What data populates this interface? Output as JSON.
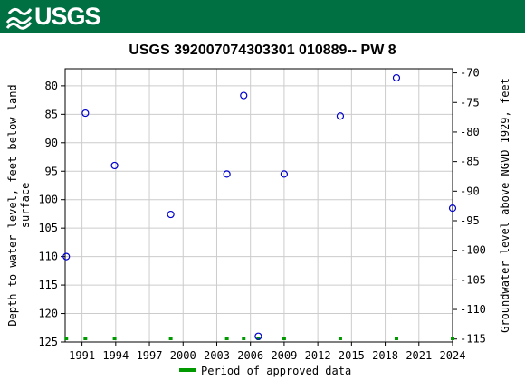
{
  "header": {
    "logo_text": "USGS",
    "logo_icon": "usgs-wave-icon",
    "background": "#006f41"
  },
  "chart_data": {
    "type": "scatter",
    "title": "USGS 392007074303301 010889-- PW 8",
    "ylabel_left_line1": "Depth to water level, feet below land",
    "ylabel_left_line2": "surface",
    "ylabel_right": "Groundwater level above NGVD 1929, feet",
    "x_ticks": [
      "1991",
      "1994",
      "1997",
      "2000",
      "2003",
      "2006",
      "2009",
      "2012",
      "2015",
      "2018",
      "2021",
      "2024"
    ],
    "xlim": [
      1989.5,
      2024.0
    ],
    "ylim_left": [
      125,
      77
    ],
    "y_ticks_left": [
      "80",
      "85",
      "90",
      "95",
      "100",
      "105",
      "110",
      "115",
      "120",
      "125"
    ],
    "y_ticks_right": [
      "-70",
      "-75",
      "-80",
      "-85",
      "-90",
      "-95",
      "-100",
      "-105",
      "-110",
      "-115"
    ],
    "series": [
      {
        "marker_color": "#0000cc",
        "points": [
          {
            "x": 1989.6,
            "y": 110.0
          },
          {
            "x": 1991.3,
            "y": 84.8
          },
          {
            "x": 1993.9,
            "y": 94.0
          },
          {
            "x": 1998.9,
            "y": 102.6
          },
          {
            "x": 2003.9,
            "y": 95.5
          },
          {
            "x": 2005.4,
            "y": 81.7
          },
          {
            "x": 2006.7,
            "y": 124.0
          },
          {
            "x": 2009.0,
            "y": 95.5
          },
          {
            "x": 2014.0,
            "y": 85.3
          },
          {
            "x": 2019.0,
            "y": 78.6
          },
          {
            "x": 2024.0,
            "y": 101.5
          }
        ]
      }
    ],
    "approved_period_marks": [
      1989.6,
      1991.3,
      1993.9,
      1998.9,
      2003.9,
      2005.4,
      2006.7,
      2009.0,
      2014.0,
      2019.0,
      2024.0
    ],
    "approved_color": "#009900",
    "legend": {
      "label": "Period of approved data",
      "placement": "bottom-center"
    },
    "grid": true
  }
}
